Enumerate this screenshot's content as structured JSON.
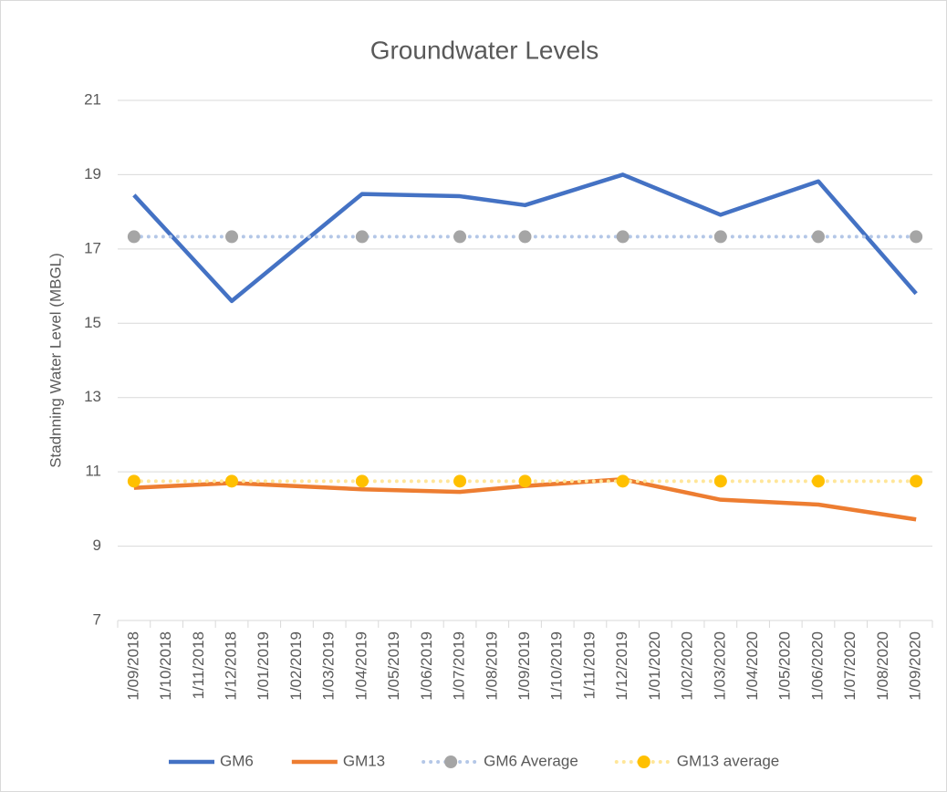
{
  "chart_data": {
    "type": "line",
    "title": "Groundwater Levels",
    "y_label": "Stadnning Water Level (MBGL)",
    "x": [
      "1/09/2018",
      "1/12/2018",
      "1/04/2019",
      "1/07/2019",
      "1/09/2019",
      "1/12/2019",
      "1/03/2020",
      "1/06/2020",
      "1/09/2020"
    ],
    "xticks": [
      "1/09/2018",
      "1/10/2018",
      "1/11/2018",
      "1/12/2018",
      "1/01/2019",
      "1/02/2019",
      "1/03/2019",
      "1/04/2019",
      "1/05/2019",
      "1/06/2019",
      "1/07/2019",
      "1/08/2019",
      "1/09/2019",
      "1/10/2019",
      "1/11/2019",
      "1/12/2019",
      "1/01/2020",
      "1/02/2020",
      "1/03/2020",
      "1/04/2020",
      "1/05/2020",
      "1/06/2020",
      "1/07/2020",
      "1/08/2020",
      "1/09/2020"
    ],
    "ylim": [
      7,
      21
    ],
    "yticks": [
      7,
      9,
      11,
      13,
      15,
      17,
      19,
      21
    ],
    "grid": true,
    "legend": "bottom",
    "series": [
      {
        "name": "GM6",
        "color": "#4472c4",
        "dash": "solid",
        "marker": false,
        "values": [
          18.45,
          15.6,
          18.48,
          18.42,
          18.18,
          19.0,
          17.92,
          18.82,
          15.8
        ]
      },
      {
        "name": "GM13",
        "color": "#ed7d31",
        "dash": "solid",
        "marker": false,
        "values": [
          10.57,
          10.7,
          10.53,
          10.46,
          10.62,
          10.8,
          10.25,
          10.12,
          9.72
        ]
      },
      {
        "name": "GM6 Average",
        "color": "#b4c7e7",
        "marker_color": "#a5a5a5",
        "dash": "dot",
        "marker": true,
        "values": [
          17.33,
          17.33,
          17.33,
          17.33,
          17.33,
          17.33,
          17.33,
          17.33,
          17.33
        ]
      },
      {
        "name": "GM13 average",
        "color": "#ffe699",
        "marker_color": "#ffc000",
        "dash": "dot",
        "marker": true,
        "values": [
          10.75,
          10.75,
          10.75,
          10.75,
          10.75,
          10.75,
          10.75,
          10.75,
          10.75
        ]
      }
    ]
  }
}
